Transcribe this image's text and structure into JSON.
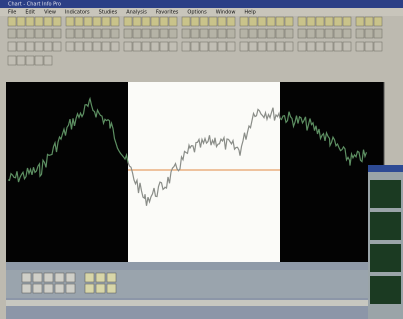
{
  "window": {
    "title": "Chart - Chart Info Pro"
  },
  "menu": [
    "File",
    "Edit",
    "View",
    "Indicators",
    "Studies",
    "Analysis",
    "Favorites",
    "Options",
    "Window",
    "Help"
  ]
}
